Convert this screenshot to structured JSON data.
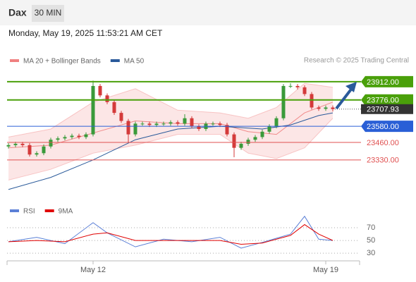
{
  "header": {
    "symbol": "Dax",
    "interval": "30 MIN",
    "datetime": "Monday, May 19, 2025 11:53:21 AM CET",
    "credit": "Research © 2025 Trading Central"
  },
  "chart_data": [
    {
      "type": "candlestick",
      "up_color": "#3a9a3a",
      "down_color": "#d43a3a",
      "xlim": [
        -0.2,
        49.8
      ],
      "ylim": [
        23025,
        24100
      ],
      "xticks": [
        {
          "value": 12,
          "label": "May 12"
        },
        {
          "value": 45,
          "label": "May 19"
        }
      ],
      "open": [
        23430,
        23440,
        23450,
        23440,
        23370,
        23380,
        23430,
        23480,
        23490,
        23500,
        23510,
        23500,
        23520,
        23880,
        23810,
        23760,
        23680,
        23620,
        23520,
        23600,
        23600,
        23590,
        23600,
        23600,
        23610,
        23600,
        23640,
        23580,
        23560,
        23600,
        23600,
        23590,
        23520,
        23420,
        23450,
        23480,
        23500,
        23540,
        23580,
        23640,
        23880,
        23880,
        23870,
        23820,
        23720,
        23710,
        23720
      ],
      "high": [
        23455,
        23465,
        23465,
        23455,
        23395,
        23445,
        23495,
        23505,
        23515,
        23525,
        23525,
        23535,
        23920,
        23895,
        23825,
        23775,
        23695,
        23635,
        23615,
        23615,
        23615,
        23615,
        23615,
        23625,
        23625,
        23670,
        23655,
        23595,
        23615,
        23615,
        23615,
        23605,
        23535,
        23465,
        23495,
        23515,
        23555,
        23595,
        23655,
        23895,
        23900,
        23895,
        23885,
        23835,
        23735,
        23735,
        23735
      ],
      "low": [
        23415,
        23425,
        23425,
        23355,
        23355,
        23365,
        23415,
        23465,
        23475,
        23485,
        23485,
        23485,
        23505,
        23795,
        23745,
        23665,
        23605,
        23460,
        23505,
        23585,
        23575,
        23575,
        23585,
        23585,
        23585,
        23585,
        23565,
        23545,
        23545,
        23585,
        23575,
        23505,
        23350,
        23405,
        23435,
        23465,
        23485,
        23525,
        23565,
        23625,
        23865,
        23855,
        23805,
        23705,
        23695,
        23695,
        23690
      ],
      "close": [
        23440,
        23450,
        23440,
        23370,
        23380,
        23430,
        23480,
        23490,
        23500,
        23510,
        23500,
        23520,
        23880,
        23810,
        23760,
        23680,
        23620,
        23520,
        23600,
        23600,
        23590,
        23600,
        23600,
        23610,
        23600,
        23640,
        23580,
        23560,
        23600,
        23600,
        23590,
        23520,
        23420,
        23450,
        23480,
        23500,
        23540,
        23580,
        23640,
        23880,
        23880,
        23870,
        23820,
        23720,
        23710,
        23720,
        23707.93
      ],
      "bollinger": {
        "name": "MA 20 + Bollinger Bands",
        "color": "#f08080",
        "x": [
          0,
          6,
          12,
          18,
          24,
          30,
          34,
          38,
          42,
          46
        ],
        "mid": [
          23420,
          23440,
          23530,
          23620,
          23600,
          23600,
          23540,
          23520,
          23680,
          23760
        ],
        "upper": [
          23500,
          23560,
          23760,
          23860,
          23700,
          23680,
          23640,
          23720,
          23900,
          23870
        ],
        "lower": [
          23180,
          23260,
          23380,
          23440,
          23520,
          23520,
          23380,
          23340,
          23420,
          23640
        ]
      },
      "series": [
        {
          "name": "MA 50",
          "color": "#2a5a9a",
          "x": [
            0,
            6,
            12,
            18,
            24,
            30,
            36,
            40,
            44,
            46
          ],
          "values": [
            23110,
            23200,
            23330,
            23480,
            23560,
            23580,
            23560,
            23590,
            23660,
            23680
          ]
        }
      ],
      "levels": [
        {
          "value": 23912,
          "label": "23912.00",
          "color": "#4aa00a",
          "kind": "box"
        },
        {
          "value": 23776,
          "label": "23776.00",
          "color": "#4aa00a",
          "kind": "box"
        },
        {
          "value": 23707.93,
          "color": "#333333",
          "kind": "current"
        },
        {
          "value": 23580,
          "label": "23580.00",
          "color": "#2a5fd6",
          "kind": "box"
        },
        {
          "value": 23460,
          "label": "23460.00",
          "color": "#e05050",
          "kind": "text"
        },
        {
          "value": 23330,
          "label": "23330.00",
          "color": "#e05050",
          "kind": "text"
        }
      ]
    },
    {
      "type": "line",
      "xlim": [
        -0.2,
        49.8
      ],
      "ylim": [
        18,
        90
      ],
      "yticks": [
        70,
        50,
        30
      ],
      "series": [
        {
          "name": "RSI",
          "color": "#5b7fd6",
          "x": [
            0,
            4,
            8,
            12,
            14,
            18,
            22,
            26,
            30,
            33,
            36,
            40,
            42,
            44,
            46
          ],
          "values": [
            48,
            55,
            45,
            78,
            62,
            40,
            52,
            48,
            55,
            38,
            47,
            60,
            88,
            52,
            50
          ]
        },
        {
          "name": "9MA",
          "color": "#e00000",
          "x": [
            0,
            4,
            8,
            12,
            14,
            18,
            22,
            26,
            30,
            33,
            36,
            40,
            42,
            44,
            46
          ],
          "values": [
            48,
            50,
            48,
            60,
            62,
            50,
            50,
            50,
            50,
            44,
            46,
            58,
            75,
            60,
            50
          ]
        }
      ]
    }
  ]
}
